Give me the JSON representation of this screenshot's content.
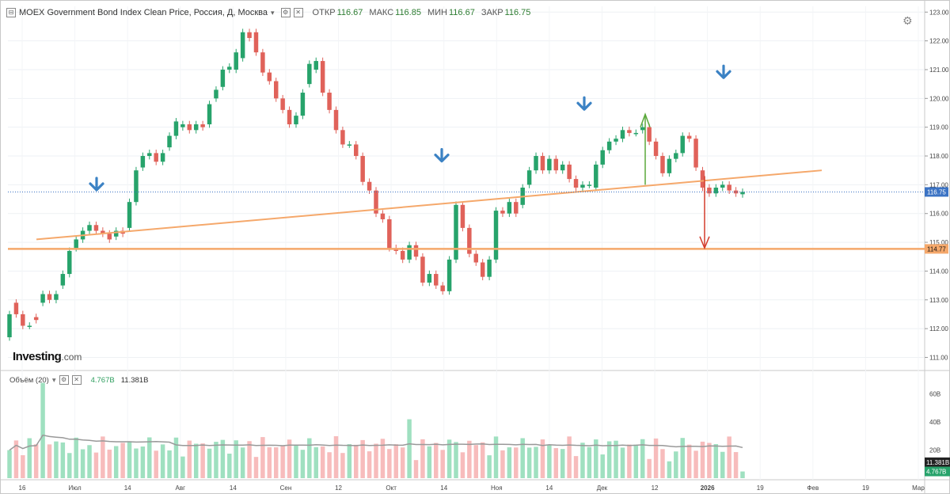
{
  "header": {
    "title": "MOEX Government Bond Index Clean Price, Россия, Д, Москва",
    "open_label": "ОТКР",
    "open_value": "116.67",
    "high_label": "МАКС",
    "high_value": "116.85",
    "low_label": "МИН",
    "low_value": "116.67",
    "close_label": "ЗАКР",
    "close_value": "116.75"
  },
  "volume_header": {
    "label": "Объём (20)",
    "volume_value": "4.767B",
    "ma_value": "11.381B"
  },
  "logo": {
    "name": "Investing",
    "domain": ".com"
  },
  "colors": {
    "up": "#27a36b",
    "down": "#e0625a",
    "up_fill": "#9fe0c0",
    "down_fill": "#f7bcbc",
    "trend": "#f5a86b",
    "support": "#f5a86b",
    "arrow": "#3b82c4",
    "last_price_bg": "#3b73c4",
    "support_bg": "#f5a86b"
  },
  "chart_data": {
    "type": "candlestick",
    "y_axis": {
      "min": 110.6,
      "max": 123.2,
      "ticks": [
        "111.00",
        "112.00",
        "113.00",
        "114.00",
        "115.00",
        "116.00",
        "117.00",
        "118.00",
        "119.00",
        "120.00",
        "121.00",
        "122.00",
        "123.00"
      ]
    },
    "x_axis": {
      "ticks": [
        "16",
        "Июл",
        "14",
        "Авг",
        "14",
        "Сен",
        "12",
        "Окт",
        "14",
        "Ноя",
        "14",
        "Дек",
        "12",
        "2026",
        "19",
        "Фев",
        "19",
        "Мар"
      ]
    },
    "last_price": "116.75",
    "support_level": "114.77",
    "volume_axis": {
      "ticks": [
        "60B",
        "40B",
        "20B"
      ],
      "current_value": "4.767B",
      "ma_value": "11.381B"
    },
    "candles": [
      [
        111.7,
        112.9,
        112.5
      ],
      [
        112.9,
        113.0,
        112.5
      ],
      [
        112.5,
        112.6,
        112.1
      ],
      [
        112.1,
        112.4,
        112.1
      ],
      [
        112.4,
        112.7,
        112.3
      ],
      [
        112.9,
        113.8,
        113.2
      ],
      [
        113.2,
        113.3,
        113.0
      ],
      [
        113.0,
        113.5,
        113.2
      ],
      [
        113.5,
        113.9,
        113.9
      ],
      [
        113.9,
        114.3,
        114.7
      ],
      [
        114.8,
        115.4,
        115.1
      ],
      [
        115.1,
        115.6,
        115.4
      ],
      [
        115.4,
        115.8,
        115.6
      ],
      [
        115.6,
        115.7,
        115.4
      ],
      [
        115.4,
        115.5,
        115.3
      ],
      [
        115.3,
        115.3,
        115.1
      ],
      [
        115.2,
        115.5,
        115.4
      ],
      [
        115.4,
        115.7,
        115.3
      ],
      [
        115.5,
        116.0,
        116.4
      ],
      [
        116.4,
        117.5,
        117.5
      ],
      [
        117.6,
        117.9,
        118.0
      ],
      [
        118.0,
        118.3,
        118.1
      ],
      [
        118.1,
        118.3,
        117.8
      ],
      [
        117.8,
        118.1,
        118.1
      ],
      [
        118.3,
        118.6,
        118.7
      ],
      [
        118.7,
        119.3,
        119.2
      ],
      [
        119.0,
        119.4,
        119.1
      ],
      [
        119.1,
        119.2,
        118.9
      ],
      [
        118.9,
        119.0,
        119.1
      ],
      [
        119.1,
        119.1,
        119.0
      ],
      [
        119.1,
        119.6,
        119.8
      ],
      [
        120.0,
        120.3,
        120.3
      ],
      [
        120.4,
        120.6,
        121.0
      ],
      [
        121.0,
        121.3,
        121.1
      ],
      [
        121.0,
        121.5,
        121.6
      ],
      [
        121.4,
        121.6,
        122.3
      ],
      [
        122.3,
        122.4,
        122.1
      ],
      [
        122.3,
        122.4,
        121.6
      ],
      [
        121.6,
        121.5,
        120.9
      ],
      [
        120.9,
        120.9,
        120.6
      ],
      [
        120.6,
        120.5,
        120.0
      ],
      [
        120.0,
        120.0,
        119.6
      ],
      [
        119.6,
        119.9,
        119.1
      ],
      [
        119.1,
        119.5,
        119.4
      ],
      [
        119.4,
        119.8,
        120.2
      ],
      [
        120.5,
        121.0,
        121.2
      ],
      [
        121.0,
        121.4,
        121.3
      ],
      [
        121.3,
        121.5,
        120.2
      ],
      [
        120.2,
        120.4,
        119.6
      ],
      [
        119.6,
        119.7,
        118.9
      ],
      [
        118.9,
        119.2,
        118.4
      ],
      [
        118.4,
        118.5,
        118.4
      ],
      [
        118.4,
        118.6,
        118.0
      ],
      [
        118.0,
        118.0,
        117.1
      ],
      [
        117.1,
        117.2,
        116.8
      ],
      [
        116.8,
        116.8,
        116.0
      ],
      [
        116.0,
        116.3,
        115.8
      ],
      [
        115.8,
        115.8,
        114.8
      ],
      [
        114.8,
        115.1,
        114.7
      ],
      [
        114.7,
        115.0,
        114.4
      ],
      [
        114.4,
        114.6,
        114.9
      ],
      [
        114.9,
        115.0,
        114.5
      ],
      [
        114.5,
        114.6,
        113.6
      ],
      [
        113.6,
        114.0,
        113.9
      ],
      [
        113.9,
        114.0,
        113.5
      ],
      [
        113.5,
        113.7,
        113.3
      ],
      [
        113.3,
        113.7,
        114.4
      ],
      [
        114.4,
        115.6,
        116.3
      ],
      [
        116.3,
        116.8,
        115.5
      ],
      [
        115.5,
        115.6,
        114.6
      ],
      [
        114.6,
        114.7,
        114.3
      ],
      [
        114.3,
        114.7,
        113.8
      ],
      [
        113.8,
        114.3,
        114.4
      ],
      [
        114.4,
        115.7,
        116.1
      ],
      [
        116.1,
        116.2,
        116.0
      ],
      [
        116.0,
        116.5,
        116.4
      ],
      [
        116.4,
        116.5,
        116.0
      ],
      [
        116.3,
        116.6,
        116.9
      ],
      [
        117.0,
        117.3,
        117.5
      ],
      [
        117.5,
        117.8,
        118.0
      ],
      [
        118.0,
        118.1,
        117.5
      ],
      [
        117.5,
        117.7,
        117.9
      ],
      [
        117.9,
        117.8,
        117.5
      ],
      [
        117.5,
        118.0,
        117.7
      ],
      [
        117.7,
        118.0,
        117.2
      ],
      [
        117.2,
        117.3,
        116.9
      ],
      [
        116.9,
        117.0,
        117.0
      ],
      [
        117.0,
        117.2,
        117.0
      ],
      [
        116.9,
        117.0,
        117.7
      ],
      [
        117.7,
        117.8,
        118.2
      ],
      [
        118.2,
        118.3,
        118.5
      ],
      [
        118.5,
        118.6,
        118.6
      ],
      [
        118.6,
        118.8,
        118.9
      ],
      [
        118.9,
        119.0,
        118.8
      ],
      [
        118.8,
        119.2,
        118.8
      ],
      [
        118.9,
        119.4,
        119.0
      ],
      [
        119.0,
        119.1,
        118.5
      ],
      [
        118.5,
        118.6,
        118.0
      ],
      [
        118.0,
        118.1,
        117.4
      ],
      [
        117.4,
        117.5,
        117.9
      ],
      [
        117.9,
        118.0,
        118.1
      ],
      [
        118.1,
        118.6,
        118.7
      ],
      [
        118.7,
        118.8,
        118.6
      ],
      [
        118.6,
        118.7,
        117.6
      ],
      [
        117.5,
        117.3,
        116.9
      ],
      [
        116.9,
        117.0,
        116.7
      ],
      [
        116.7,
        116.9,
        116.9
      ],
      [
        116.9,
        117.2,
        117.0
      ],
      [
        117.0,
        117.1,
        116.8
      ],
      [
        116.8,
        116.9,
        116.7
      ],
      [
        116.67,
        116.85,
        116.75
      ]
    ],
    "volumes": [],
    "volume_ma": []
  }
}
